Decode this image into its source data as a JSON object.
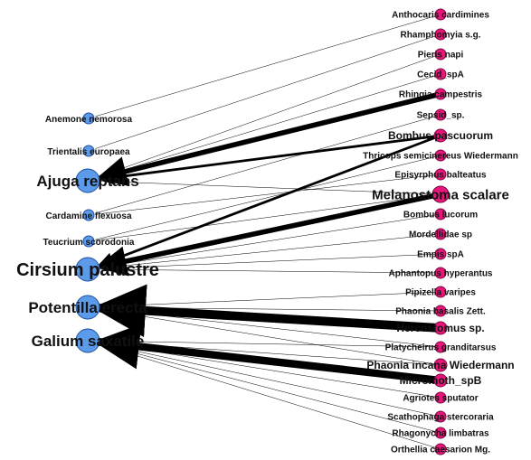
{
  "colors": {
    "plant": "#5b9bea",
    "insect": "#e8157a",
    "edge": "#000000"
  },
  "plants": [
    {
      "id": "p1",
      "label": "Anemone nemorosa",
      "size": "small"
    },
    {
      "id": "p2",
      "label": "Trientalis europaea",
      "size": "small"
    },
    {
      "id": "p3",
      "label": "Ajuga reptans",
      "size": "large"
    },
    {
      "id": "p4",
      "label": "Cardamine flexuosa",
      "size": "small"
    },
    {
      "id": "p5",
      "label": "Teucrium scorodonia",
      "size": "small"
    },
    {
      "id": "p6",
      "label": "Cirsium palustre",
      "size": "large"
    },
    {
      "id": "p7",
      "label": "Potentilla erecta",
      "size": "large"
    },
    {
      "id": "p8",
      "label": "Galium saxatile",
      "size": "large"
    }
  ],
  "insects": [
    {
      "id": "i1",
      "label": "Anthocaris cardimines",
      "size": "small"
    },
    {
      "id": "i2",
      "label": "Rhamphomyia s.g.",
      "size": "small"
    },
    {
      "id": "i3",
      "label": "Pieris napi",
      "size": "small"
    },
    {
      "id": "i4",
      "label": "Cecid_spA",
      "size": "small"
    },
    {
      "id": "i5",
      "label": "Rhingia campestris",
      "size": "small"
    },
    {
      "id": "i6",
      "label": "Sepsid_sp.",
      "size": "small"
    },
    {
      "id": "i7",
      "label": "Bombus pascuorum",
      "size": "medium"
    },
    {
      "id": "i8",
      "label": "Thricops semicinereus Wiedermann",
      "size": "small"
    },
    {
      "id": "i9",
      "label": "Episyrphus balteatus",
      "size": "small"
    },
    {
      "id": "i10",
      "label": "Melanostoma scalare",
      "size": "large"
    },
    {
      "id": "i11",
      "label": "Bombus lucorum",
      "size": "small"
    },
    {
      "id": "i12",
      "label": "Mordellidae sp",
      "size": "small"
    },
    {
      "id": "i13",
      "label": "Empis spA",
      "size": "small"
    },
    {
      "id": "i14",
      "label": "Aphantopus hyperantus",
      "size": "small"
    },
    {
      "id": "i15",
      "label": "Pipizella varipes",
      "size": "small"
    },
    {
      "id": "i16",
      "label": "Phaonia basalis Zett.",
      "size": "small"
    },
    {
      "id": "i17",
      "label": "Hercostomus sp.",
      "size": "medium"
    },
    {
      "id": "i18",
      "label": "Platycheirus granditarsus",
      "size": "small"
    },
    {
      "id": "i19",
      "label": "Phaonia incana Wiedermann",
      "size": "medium"
    },
    {
      "id": "i20",
      "label": "Micromoth_spB",
      "size": "medium"
    },
    {
      "id": "i21",
      "label": "Agriotes sputator",
      "size": "small"
    },
    {
      "id": "i22",
      "label": "Scathophaga stercoraria",
      "size": "small"
    },
    {
      "id": "i23",
      "label": "Rhagonycha limbatras",
      "size": "small"
    },
    {
      "id": "i24",
      "label": "Orthellia caesarion Mg.",
      "size": "small"
    }
  ],
  "edges": [
    {
      "from": "i1",
      "to": "p1",
      "weight": 1
    },
    {
      "from": "i2",
      "to": "p2",
      "weight": 1
    },
    {
      "from": "i3",
      "to": "p3",
      "weight": 1
    },
    {
      "from": "i4",
      "to": "p3",
      "weight": 1
    },
    {
      "from": "i5",
      "to": "p3",
      "weight": 4
    },
    {
      "from": "i6",
      "to": "p4",
      "weight": 1
    },
    {
      "from": "i7",
      "to": "p3",
      "weight": 2
    },
    {
      "from": "i7",
      "to": "p6",
      "weight": 2
    },
    {
      "from": "i8",
      "to": "p5",
      "weight": 1
    },
    {
      "from": "i9",
      "to": "p4",
      "weight": 1
    },
    {
      "from": "i10",
      "to": "p6",
      "weight": 4
    },
    {
      "from": "i10",
      "to": "p5",
      "weight": 1
    },
    {
      "from": "i10",
      "to": "p3",
      "weight": 1
    },
    {
      "from": "i11",
      "to": "p6",
      "weight": 1
    },
    {
      "from": "i12",
      "to": "p6",
      "weight": 1
    },
    {
      "from": "i13",
      "to": "p6",
      "weight": 1
    },
    {
      "from": "i14",
      "to": "p6",
      "weight": 1
    },
    {
      "from": "i15",
      "to": "p7",
      "weight": 1
    },
    {
      "from": "i16",
      "to": "p7",
      "weight": 1
    },
    {
      "from": "i17",
      "to": "p7",
      "weight": 7
    },
    {
      "from": "i18",
      "to": "p8",
      "weight": 1
    },
    {
      "from": "i19",
      "to": "p8",
      "weight": 1
    },
    {
      "from": "i20",
      "to": "p8",
      "weight": 6
    },
    {
      "from": "i21",
      "to": "p8",
      "weight": 1
    },
    {
      "from": "i22",
      "to": "p8",
      "weight": 1
    },
    {
      "from": "i23",
      "to": "p8",
      "weight": 1
    },
    {
      "from": "i24",
      "to": "p8",
      "weight": 1
    },
    {
      "from": "i18",
      "to": "p7",
      "weight": 1
    },
    {
      "from": "i19",
      "to": "p7",
      "weight": 1
    }
  ]
}
